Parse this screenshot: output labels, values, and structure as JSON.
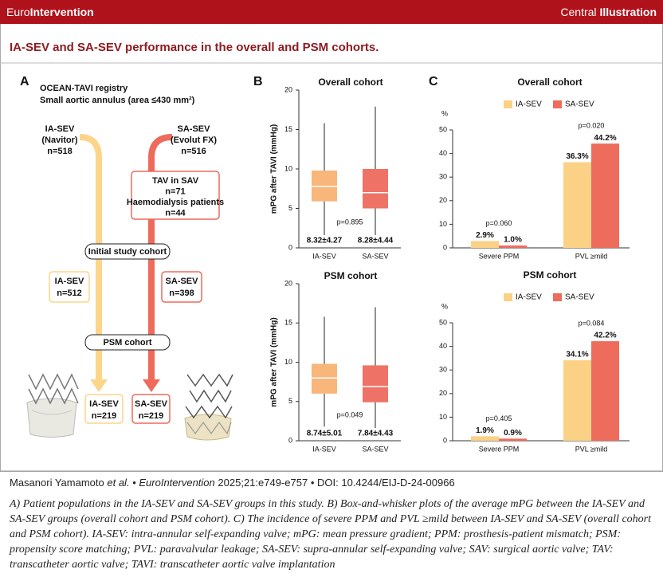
{
  "header": {
    "brand": [
      "Euro",
      "Intervention"
    ],
    "label": [
      "Central",
      "Illustration"
    ]
  },
  "title": "IA-SEV and SA-SEV performance in the overall and PSM cohorts.",
  "panel_labels": [
    "A",
    "B",
    "C"
  ],
  "diagram": {
    "registry": [
      "OCEAN-TAVI registry",
      "Small aortic annulus (area ≤430 mm²)"
    ],
    "ia_sev": [
      "IA-SEV",
      "(Navitor)",
      "n=518"
    ],
    "sa_sev": [
      "SA-SEV",
      "(Evolut FX)",
      "n=516"
    ],
    "excluded": [
      "TAV in SAV",
      "n=71",
      "Haemodialysis patients",
      "n=44"
    ],
    "initial": "Initial study cohort",
    "initial_ia": [
      "IA-SEV",
      "n=512"
    ],
    "initial_sa": [
      "SA-SEV",
      "n=398"
    ],
    "psm": "PSM cohort",
    "psm_ia": [
      "IA-SEV",
      "n=219"
    ],
    "psm_sa": [
      "SA-SEV",
      "n=219"
    ]
  },
  "chart_data": [
    {
      "type": "box",
      "title": "Overall cohort",
      "y_label": "mPG after TAVI (mmHg)",
      "categories": [
        "IA-SEV",
        "SA-SEV"
      ],
      "colors": [
        "#f8b67a",
        "#ee7366"
      ],
      "boxes": [
        {
          "whisker_low": 1.5,
          "q1": 5.9,
          "median": 7.8,
          "q3": 9.8,
          "whisker_high": 15.8
        },
        {
          "whisker_low": 1.0,
          "q1": 5.0,
          "median": 7.0,
          "q3": 10.0,
          "whisker_high": 17.9
        }
      ],
      "stat_labels": [
        "8.32±4.27",
        "8.28±4.44"
      ],
      "annotation": "p=0.895",
      "ylim": [
        0,
        20
      ],
      "yticks": [
        0,
        5,
        10,
        15,
        20
      ]
    },
    {
      "type": "box",
      "title": "PSM cohort",
      "y_label": "mPG after TAVI (mmHg)",
      "categories": [
        "IA-SEV",
        "SA-SEV"
      ],
      "colors": [
        "#f8b67a",
        "#ee7366"
      ],
      "boxes": [
        {
          "whisker_low": 1.8,
          "q1": 6.0,
          "median": 8.0,
          "q3": 9.8,
          "whisker_high": 15.8
        },
        {
          "whisker_low": 1.0,
          "q1": 4.9,
          "median": 6.9,
          "q3": 9.6,
          "whisker_high": 17.0
        }
      ],
      "stat_labels": [
        "8.74±5.01",
        "7.84±4.43"
      ],
      "annotation": "p=0.049",
      "ylim": [
        0,
        20
      ],
      "yticks": [
        0,
        5,
        10,
        15,
        20
      ]
    },
    {
      "type": "bar",
      "title": "Overall cohort",
      "y_label": "%",
      "categories": [
        "Severe PPM",
        "PVL ≥mild"
      ],
      "series": [
        {
          "name": "IA-SEV",
          "color": "#fbd185",
          "values": [
            2.9,
            36.3
          ],
          "value_labels": [
            "2.9%",
            "36.3%"
          ]
        },
        {
          "name": "SA-SEV",
          "color": "#ee6c5c",
          "values": [
            1.0,
            44.2
          ],
          "value_labels": [
            "1.0%",
            "44.2%"
          ]
        }
      ],
      "annotations": [
        "p=0.060",
        "p=0.020"
      ],
      "ylim": [
        0,
        50
      ],
      "yticks": [
        0,
        10,
        20,
        30,
        40,
        50
      ]
    },
    {
      "type": "bar",
      "title": "PSM cohort",
      "y_label": "%",
      "categories": [
        "Severe PPM",
        "PVL ≥mild"
      ],
      "series": [
        {
          "name": "IA-SEV",
          "color": "#fbd185",
          "values": [
            1.9,
            34.1
          ],
          "value_labels": [
            "1.9%",
            "34.1%"
          ]
        },
        {
          "name": "SA-SEV",
          "color": "#ee6c5c",
          "values": [
            0.9,
            42.2
          ],
          "value_labels": [
            "0.9%",
            "42.2%"
          ]
        }
      ],
      "annotations": [
        "p=0.405",
        "p=0.084"
      ],
      "ylim": [
        0,
        50
      ],
      "yticks": [
        0,
        10,
        20,
        30,
        40,
        50
      ]
    }
  ],
  "citation": [
    "Masanori Yamamoto",
    "et al.",
    "•",
    "EuroIntervention",
    "2025;21:e749-e757",
    "•",
    "DOI: 10.4244/EIJ-D-24-00966"
  ],
  "caption": "A) Patient populations in the IA-SEV and SA-SEV groups in this study. B) Box-and-whisker plots of the average mPG between the IA-SEV and SA-SEV groups (overall cohort and PSM cohort). C) The incidence of severe PPM and PVL ≥mild between IA-SEV and SA-SEV (overall cohort and PSM cohort). IA-SEV: intra-annular self-expanding valve; mPG: mean pressure gradient; PPM: prosthesis-patient mismatch; PSM: propensity score matching; PVL: paravalvular leakage; SA-SEV: supra-annular self-expanding valve; SAV: surgical aortic valve; TAV: transcatheter aortic valve; TAVI: transcatheter aortic valve implantation"
}
